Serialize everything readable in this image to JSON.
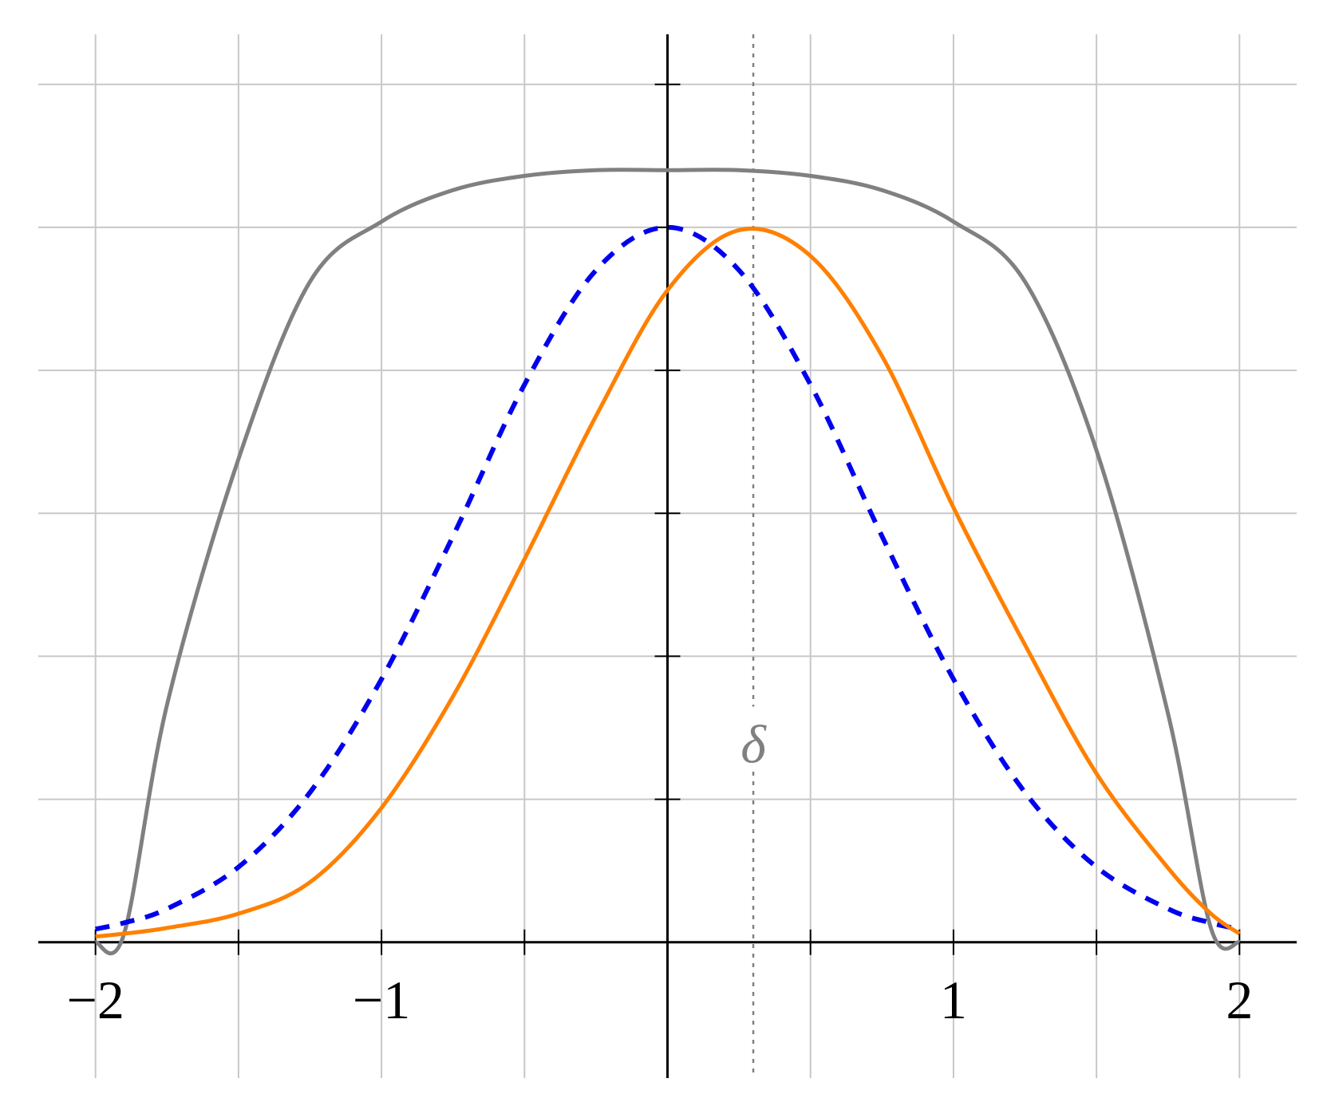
{
  "chart_data": {
    "type": "line",
    "x": [
      -2,
      -1.9,
      -1.75,
      -1.5,
      -1.25,
      -1,
      -0.75,
      -0.5,
      -0.25,
      0,
      0.25,
      0.5,
      0.75,
      1,
      1.25,
      1.5,
      1.75,
      1.9,
      2
    ],
    "series": [
      {
        "color": "#808080",
        "line_style": "solid",
        "values": [
          0,
          0.03,
          0.83,
          1.69,
          2.31,
          2.52,
          2.63,
          2.68,
          2.7,
          2.7,
          2.7,
          2.68,
          2.63,
          2.52,
          2.31,
          1.72,
          0.8,
          0.05,
          0
        ]
      },
      {
        "color": "#0000ee",
        "line_style": "dashed",
        "values": [
          0.046,
          0.068,
          0.117,
          0.263,
          0.524,
          0.92,
          1.42,
          1.95,
          2.35,
          2.5,
          2.35,
          1.95,
          1.42,
          0.92,
          0.524,
          0.263,
          0.117,
          0.068,
          0.046
        ]
      },
      {
        "color": "#ff8000",
        "line_style": "solid",
        "values": [
          0.02,
          0.03,
          0.05,
          0.1,
          0.21,
          0.47,
          0.86,
          1.34,
          1.84,
          2.28,
          2.49,
          2.4,
          2.05,
          1.52,
          1.04,
          0.59,
          0.26,
          0.1,
          0.03
        ]
      }
    ],
    "xlim": [
      -2.2,
      2.2
    ],
    "ylim": [
      -0.475,
      3.175
    ],
    "xticks": [
      {
        "value": -2,
        "label": "−2"
      },
      {
        "value": -1,
        "label": "−1"
      },
      1,
      2
    ],
    "xgrid": [
      -2,
      -1.5,
      -1,
      -0.5,
      0.5,
      1,
      1.5,
      2
    ],
    "ygrid": [
      0.5,
      1,
      1.5,
      2,
      2.5,
      3
    ],
    "grid": true,
    "vline": {
      "x": 0.3,
      "color": "#808080",
      "line_style": "dotted"
    },
    "annotation": {
      "text": "δ",
      "x": 0.3,
      "y": 0.69,
      "color": "#808080"
    }
  }
}
